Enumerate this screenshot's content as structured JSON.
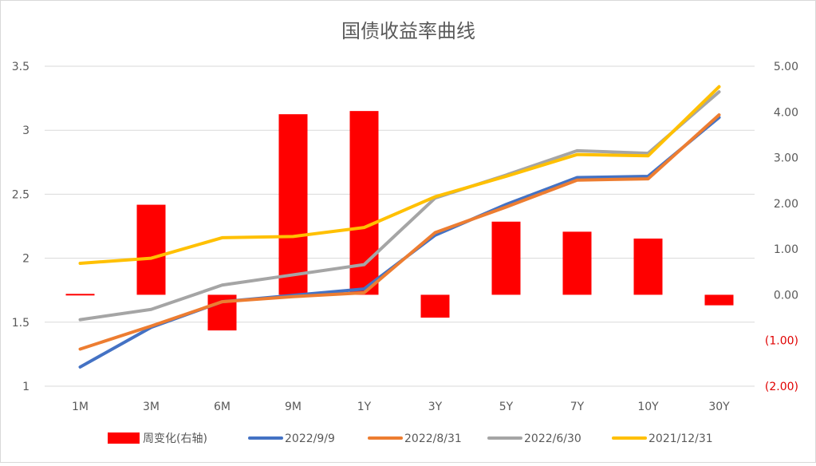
{
  "chart_data": {
    "type": "bar+line",
    "title": "国债收益率曲线",
    "categories": [
      "1M",
      "3M",
      "6M",
      "9M",
      "1Y",
      "3Y",
      "5Y",
      "7Y",
      "10Y",
      "30Y"
    ],
    "left_axis": {
      "ylim": [
        1,
        3.5
      ],
      "ticks": [
        "1",
        "1.5",
        "2",
        "2.5",
        "3",
        "3.5"
      ],
      "tick_values": [
        1,
        1.5,
        2,
        2.5,
        3,
        3.5
      ]
    },
    "right_axis": {
      "ylim": [
        -2,
        5
      ],
      "ticks": [
        "(2.00)",
        "(1.00)",
        "0.00",
        "1.00",
        "2.00",
        "3.00",
        "4.00",
        "5.00"
      ],
      "tick_values": [
        -2,
        -1,
        0,
        1,
        2,
        3,
        4,
        5
      ]
    },
    "bar_series": {
      "name": "周变化(右轴)",
      "axis": "right",
      "color": "#ff0000",
      "values": [
        0.02,
        1.97,
        -0.78,
        3.95,
        4.02,
        -0.5,
        1.6,
        1.38,
        1.23,
        -0.23
      ]
    },
    "line_series": [
      {
        "name": "2022/9/9",
        "color": "#4472c4",
        "values": [
          1.15,
          1.46,
          1.66,
          1.71,
          1.76,
          2.18,
          2.42,
          2.63,
          2.64,
          3.1
        ]
      },
      {
        "name": "2022/8/31",
        "color": "#ed7d31",
        "values": [
          1.29,
          1.47,
          1.66,
          1.7,
          1.73,
          2.2,
          2.4,
          2.61,
          2.62,
          3.12
        ]
      },
      {
        "name": "2022/6/30",
        "color": "#a5a5a5",
        "values": [
          1.52,
          1.6,
          1.79,
          1.87,
          1.95,
          2.47,
          2.65,
          2.84,
          2.82,
          3.3
        ]
      },
      {
        "name": "2021/12/31",
        "color": "#ffc000",
        "values": [
          1.96,
          2.0,
          2.16,
          2.17,
          2.24,
          2.48,
          2.64,
          2.81,
          2.8,
          3.34
        ]
      }
    ],
    "grid": true,
    "legend_position": "bottom"
  }
}
